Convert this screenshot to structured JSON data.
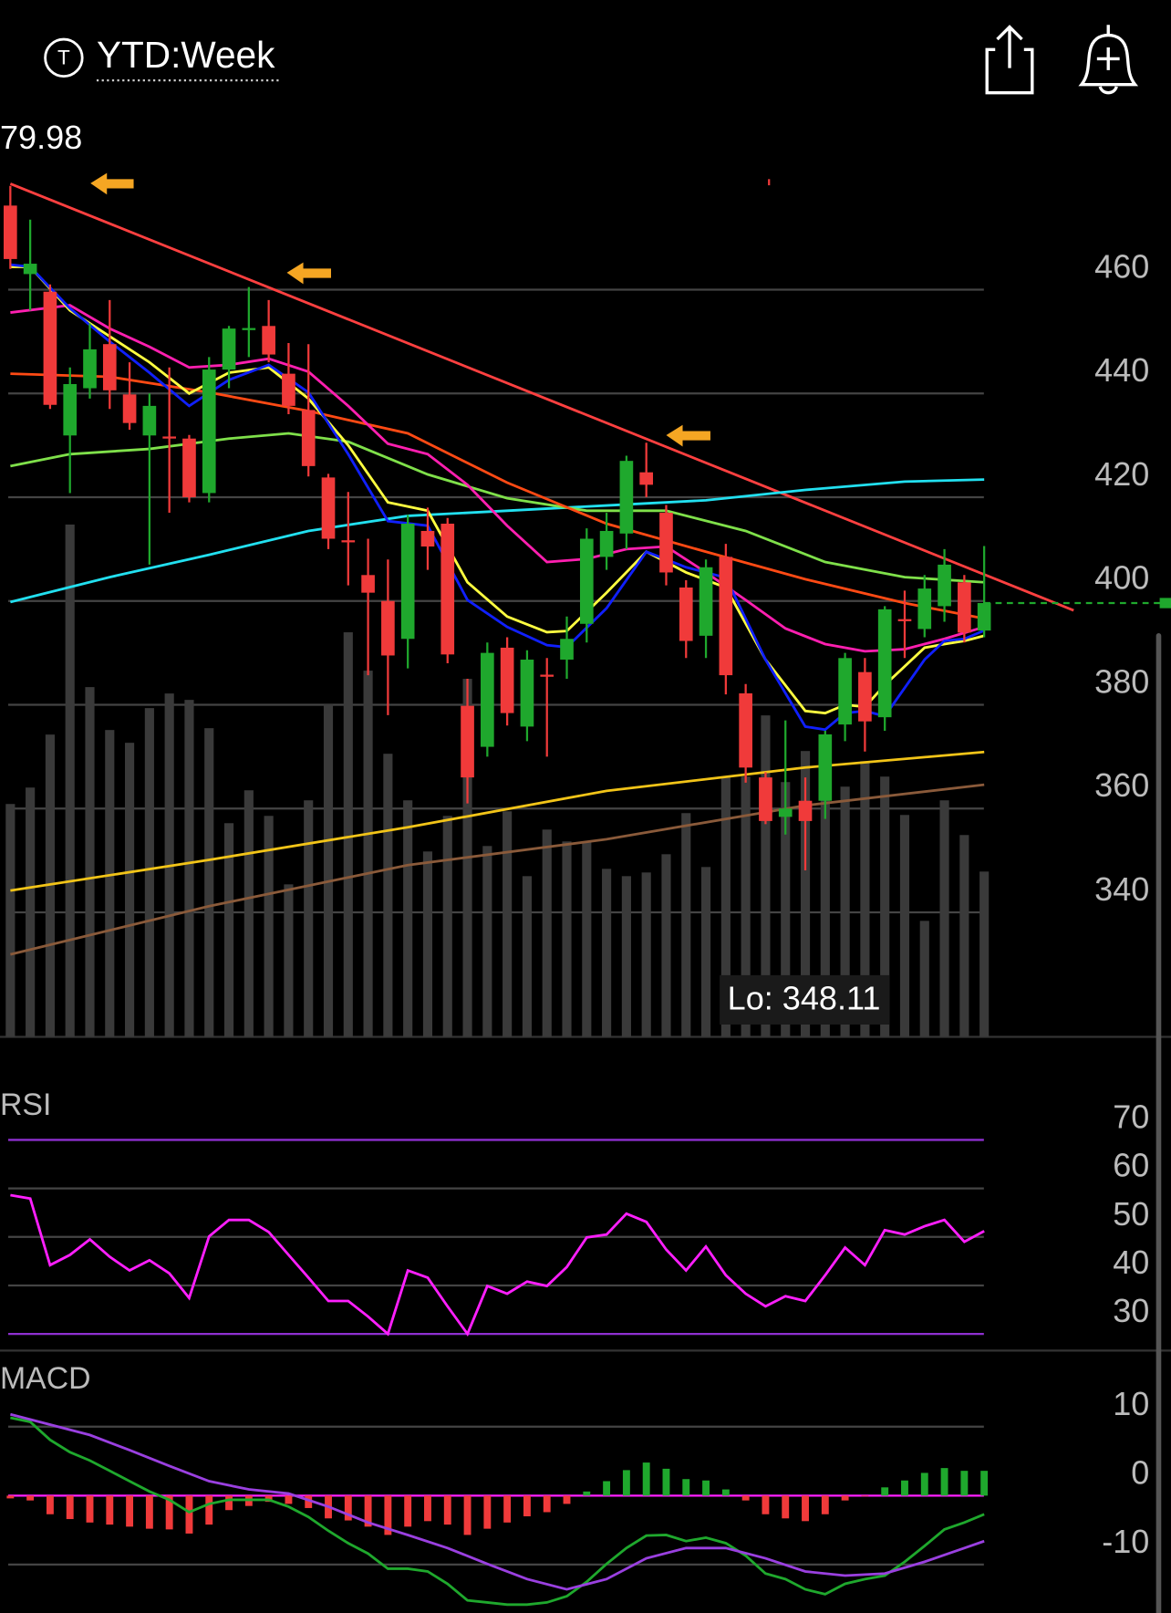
{
  "header": {
    "title": "YTD:Week"
  },
  "chart_data": [
    {
      "type": "candlestick",
      "xlim": [
        -0.52,
        58.4
      ],
      "ylim": [
        316,
        492
      ],
      "yticks": [
        340,
        360,
        380,
        400,
        420,
        440,
        460
      ],
      "grid": true,
      "up_color": "#1fa82d",
      "down_color": "#f03a3a",
      "open": [
        476.2,
        463,
        459.6,
        431.9,
        441,
        449.5,
        439.8,
        431.9,
        431.7,
        431.3,
        420.8,
        444.6,
        452.3,
        453,
        443.8,
        436.8,
        423.8,
        411.7,
        405,
        400,
        392.7,
        413.5,
        414.9,
        379.8,
        371.9,
        391,
        375.8,
        385.8,
        388.7,
        395.6,
        408.5,
        413,
        424.8,
        417,
        402.6,
        393.3,
        408.5,
        382.2,
        366,
        358.4,
        361.5,
        361.5,
        376.2,
        386.3,
        377.6,
        396.5,
        394.6,
        399,
        403.6,
        394.3
      ],
      "high": [
        480,
        473.5,
        461,
        445,
        453.5,
        458,
        446,
        440,
        445,
        432,
        447,
        453,
        460.5,
        458,
        449.7,
        449.5,
        424.5,
        421,
        412,
        408,
        416.6,
        418,
        416,
        385,
        392,
        393,
        390.5,
        389,
        397,
        414,
        417,
        428,
        430.5,
        418.5,
        404,
        408,
        411,
        384,
        367,
        377,
        366,
        375,
        390,
        389,
        399,
        402,
        405,
        410,
        405,
        410.6
      ],
      "low": [
        464,
        456,
        437,
        420.8,
        439,
        437,
        433,
        407,
        417,
        419,
        419,
        441,
        447,
        446,
        436,
        424,
        410,
        403,
        385.7,
        378,
        387,
        406,
        388,
        361,
        370,
        376,
        373,
        370,
        385,
        392,
        406,
        410,
        420,
        403,
        389,
        389,
        382,
        365,
        357,
        355,
        348.1,
        358,
        373,
        371,
        375,
        389,
        393,
        396,
        392,
        393
      ],
      "close": [
        465.9,
        465,
        437.8,
        441.8,
        448.5,
        440.6,
        434.3,
        437.6,
        431.5,
        420,
        444.6,
        452.5,
        452.6,
        447.5,
        437.6,
        426,
        412,
        411.5,
        401.6,
        389.5,
        414.9,
        410.5,
        389.7,
        366,
        390,
        378.4,
        388.7,
        385.6,
        392.7,
        412,
        413.5,
        427,
        422.4,
        405.5,
        392.3,
        406.5,
        385.7,
        367.9,
        357.6,
        360,
        357.6,
        374.3,
        389,
        376.8,
        398.4,
        396.3,
        402.4,
        407,
        393.9,
        399.6
      ],
      "volume": [
        25.5,
        27.3,
        33.1,
        56.1,
        38.3,
        33.6,
        32.2,
        36.0,
        37.6,
        36.9,
        33.8,
        23.4,
        27.0,
        24.2,
        16.7,
        25.9,
        36.4,
        44.3,
        40.1,
        31.0,
        25.9,
        20.3,
        24.2,
        39.2,
        20.9,
        24.7,
        17.6,
        22.7,
        21.4,
        21.4,
        18.4,
        17.6,
        18.0,
        20.0,
        24.5,
        18.6,
        28.5,
        28.5,
        35.2,
        27.9,
        31.3,
        31.5,
        27.4,
        30.2,
        28.5,
        24.3,
        12.7,
        25.9,
        22.1,
        18.1
      ],
      "vlim": [
        0,
        100
      ],
      "volume_color": "#3a3a3a",
      "last_color": "#1fa82d",
      "overlays": [
        {
          "color": "#ff4040",
          "x": [
            0,
            53.5
          ],
          "values": [
            480.4,
            398.2
          ]
        },
        {
          "color": "#8a5a3a",
          "x": [
            0,
            10,
            20,
            30,
            40,
            49
          ],
          "values": [
            331.9,
            341.2,
            349.1,
            354.1,
            360.6,
            364.6
          ]
        },
        {
          "color": "#f2c418",
          "x": [
            0,
            10,
            20,
            30,
            40,
            49
          ],
          "values": [
            344.2,
            350.1,
            356.4,
            363.4,
            367.9,
            370.9
          ]
        },
        {
          "color": "#22e0f0",
          "x": [
            0,
            5,
            10,
            15,
            20,
            25,
            30,
            35,
            40,
            45,
            49
          ],
          "values": [
            399.8,
            404.6,
            408.9,
            413.5,
            416.4,
            417.4,
            418.4,
            419.4,
            421.4,
            423,
            423.4
          ]
        },
        {
          "color": "#7fe04a",
          "x": [
            0,
            3,
            7,
            11,
            14,
            17,
            21,
            25,
            29,
            33,
            37,
            41,
            45,
            49
          ],
          "values": [
            426,
            428.3,
            429.3,
            431.3,
            432.3,
            430.7,
            424.4,
            419.8,
            417.4,
            417.4,
            413.5,
            407.5,
            404.6,
            403.6
          ]
        },
        {
          "color": "#ff4a14",
          "x": [
            0,
            5,
            10,
            15,
            20,
            25,
            30,
            35,
            40,
            45,
            49
          ],
          "values": [
            443.8,
            443.2,
            440.2,
            436.6,
            432.3,
            422.8,
            414.9,
            409.5,
            404.2,
            399.6,
            396.6
          ]
        },
        {
          "color": "#ff1fb0",
          "x": [
            0,
            3,
            5,
            7,
            9,
            11,
            13,
            15,
            17,
            19,
            21,
            23,
            25,
            27,
            29,
            31,
            33,
            35,
            37,
            39,
            41,
            43,
            45,
            47,
            49
          ],
          "values": [
            455.6,
            457,
            452.5,
            449,
            445,
            445.5,
            446.7,
            444.2,
            437.6,
            430.3,
            428.3,
            422.4,
            414.5,
            407.5,
            408.1,
            410,
            410.5,
            405.5,
            400.2,
            394.7,
            391.7,
            390.3,
            390.7,
            392.7,
            395
          ]
        },
        {
          "color": "#ffff40",
          "x": [
            0,
            1,
            3,
            5,
            7,
            9,
            11,
            13,
            15,
            17,
            19,
            21,
            23,
            25,
            27,
            28,
            30,
            32,
            34,
            36,
            38,
            40,
            41,
            42,
            43,
            44,
            46,
            47,
            48,
            49
          ],
          "values": [
            464.4,
            464.4,
            456,
            451,
            446,
            440,
            444,
            445,
            439,
            430,
            419,
            417.4,
            403.6,
            397,
            394,
            394.2,
            401.6,
            409.5,
            405.5,
            402.6,
            388.7,
            378.8,
            378.4,
            380,
            379.6,
            383.8,
            391,
            391.7,
            392.3,
            393.3
          ]
        },
        {
          "color": "#1020ff",
          "x": [
            0,
            1,
            3,
            5,
            7,
            9,
            11,
            13,
            15,
            17,
            19,
            21,
            23,
            25,
            27,
            28,
            30,
            32,
            34,
            36,
            38,
            40,
            41,
            42,
            43,
            44,
            46,
            47,
            48,
            49
          ],
          "values": [
            464.8,
            464.4,
            456.4,
            450,
            444,
            437.6,
            442.6,
            445.5,
            440.2,
            428.3,
            415.4,
            414.5,
            400.2,
            395,
            391.5,
            391.1,
            398.6,
            409.5,
            406.5,
            404.5,
            388.7,
            375.8,
            375.2,
            378.4,
            378.8,
            377.8,
            388.7,
            392.3,
            392.7,
            394.3
          ]
        }
      ],
      "annotations": [
        {
          "text": "79.98"
        },
        {
          "text": "Lo: 348.11"
        }
      ]
    },
    {
      "type": "line",
      "title": "RSI",
      "xlim": [
        -0.52,
        58.4
      ],
      "ylim": [
        27,
        80
      ],
      "yticks": [
        30,
        40,
        50,
        60,
        70
      ],
      "grid": true,
      "band_color": "#8e2fd0",
      "series": [
        {
          "color": "#ff1fff",
          "values": [
            58.6,
            57.9,
            44.2,
            46.3,
            49.5,
            45.9,
            43.1,
            45.2,
            42.5,
            37.4,
            50.1,
            53.5,
            53.5,
            51,
            46.3,
            41.6,
            36.8,
            36.8,
            33.6,
            30,
            43.1,
            41.6,
            35.7,
            30,
            39.9,
            38.3,
            40.8,
            39.9,
            43.8,
            49.9,
            50.5,
            54.8,
            53.1,
            47.4,
            43.1,
            48,
            42.1,
            38.3,
            35.7,
            37.8,
            36.8,
            42.1,
            47.8,
            44.2,
            51.4,
            50.5,
            52.2,
            53.5,
            49,
            51.2
          ]
        }
      ]
    },
    {
      "type": "macd",
      "title": "MACD",
      "xlim": [
        -0.52,
        58.4
      ],
      "ylim": [
        -17,
        20
      ],
      "yticks": [
        -10,
        0,
        10
      ],
      "grid": true,
      "zero_color": "#ff1fff",
      "up_color": "#1fa82d",
      "down_color": "#f03a3a",
      "histogram": [
        -0.4,
        -0.7,
        -2.7,
        -3.4,
        -3.9,
        -4.2,
        -4.5,
        -4.8,
        -4.9,
        -5.5,
        -4.2,
        -2.1,
        -1.5,
        -0.9,
        -1.2,
        -1.8,
        -3.3,
        -3.6,
        -4.5,
        -5.7,
        -4.5,
        -3.7,
        -4.2,
        -5.7,
        -4.8,
        -3.9,
        -3,
        -2.4,
        -1.2,
        0.6,
        2.1,
        3.7,
        4.8,
        3.9,
        2.4,
        2.2,
        0.9,
        -0.7,
        -2.7,
        -3.3,
        -3.7,
        -2.7,
        -0.7,
        -0.1,
        1.2,
        2.2,
        3.3,
        4,
        3.6,
        3.6
      ],
      "series": [
        {
          "color": "#1fa82d",
          "x": [
            0,
            1,
            2,
            3,
            4,
            5,
            6,
            7,
            8,
            9,
            10,
            11,
            12,
            13,
            14,
            15,
            16,
            17,
            18,
            19,
            20,
            21,
            22,
            23,
            24,
            25,
            26,
            27,
            28,
            29,
            30,
            31,
            32,
            33,
            34,
            35,
            36,
            37,
            38,
            39,
            40,
            41,
            42,
            43,
            44,
            45,
            46,
            47,
            48,
            49
          ],
          "values": [
            11.3,
            10.7,
            8.1,
            6.3,
            5.1,
            3.6,
            2.1,
            0.6,
            -0.6,
            -2.4,
            -1.2,
            -0.6,
            -0.6,
            -0.6,
            -1.6,
            -3.1,
            -5.1,
            -6.9,
            -8.4,
            -10.6,
            -10.6,
            -11,
            -12.8,
            -15.2,
            -15.5,
            -15.8,
            -15.8,
            -15.5,
            -14.6,
            -12.5,
            -9.9,
            -7.6,
            -5.8,
            -5.7,
            -6.6,
            -6.1,
            -6.9,
            -8.7,
            -11.3,
            -12.1,
            -13.6,
            -14.3,
            -12.8,
            -12.1,
            -11.6,
            -9.6,
            -7.3,
            -4.9,
            -3.9,
            -2.7
          ]
        },
        {
          "color": "#9a40e0",
          "x": [
            0,
            2,
            4,
            6,
            8,
            10,
            12,
            14,
            16,
            18,
            20,
            22,
            24,
            26,
            28,
            30,
            32,
            34,
            36,
            38,
            40,
            42,
            44,
            46,
            48,
            49
          ],
          "values": [
            11.8,
            10.3,
            8.8,
            6.6,
            4.3,
            2.1,
            0.9,
            0.3,
            -1.6,
            -3.9,
            -5.7,
            -7.6,
            -9.9,
            -12.1,
            -13.6,
            -12.1,
            -9.1,
            -7.6,
            -7.6,
            -9.1,
            -11,
            -11.6,
            -11.3,
            -9.6,
            -7.6,
            -6.6
          ]
        }
      ]
    }
  ]
}
